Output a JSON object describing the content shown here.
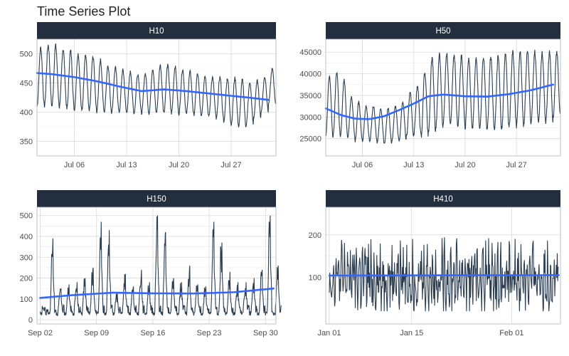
{
  "title": "Time Series Plot",
  "colors": {
    "strip": "#232f3e",
    "strip_text": "#ffffff",
    "line": "#2c3e50",
    "smooth": "#3366ff",
    "grid": "#d9d9d9",
    "border": "#b3b3b3",
    "tick_label": "#4d4d4d"
  },
  "chart_data": [
    {
      "type": "line",
      "panel": "H10",
      "x_unit": "hours (Jul 2015)",
      "x_start": "Jun 30",
      "xlim": [
        "Jun 30",
        "Aug 01"
      ],
      "ylim": [
        325,
        525
      ],
      "xticks": [
        {
          "label": "Jul 06",
          "pos": 6
        },
        {
          "label": "Jul 13",
          "pos": 13
        },
        {
          "label": "Jul 20",
          "pos": 20
        },
        {
          "label": "Jul 27",
          "pos": 27
        }
      ],
      "yticks": [
        350,
        400,
        450,
        500
      ],
      "series": [
        {
          "x": [
            1,
            32
          ],
          "kind": "hourly",
          "daily_mean": [
            460,
            463,
            462,
            458,
            455,
            452,
            450,
            448,
            445,
            440,
            438,
            436,
            434,
            432,
            432,
            436,
            440,
            440,
            438,
            435,
            433,
            430,
            428,
            426,
            424,
            420,
            418,
            415,
            414,
            422,
            430,
            444
          ],
          "daily_amplitude": [
            50,
            52,
            52,
            50,
            50,
            48,
            48,
            46,
            44,
            40,
            38,
            36,
            35,
            33,
            34,
            38,
            40,
            40,
            40,
            38,
            36,
            35,
            34,
            34,
            36,
            38,
            40,
            40,
            36,
            32,
            30,
            30
          ]
        },
        {
          "name": "smooth",
          "x": [
            1,
            3,
            6,
            9,
            12,
            15,
            18,
            21,
            24,
            27,
            30,
            32
          ],
          "y": [
            467,
            465,
            460,
            453,
            444,
            436,
            439,
            436,
            432,
            428,
            424,
            421
          ]
        }
      ]
    },
    {
      "type": "line",
      "panel": "H50",
      "x_unit": "hours (Jul 2015)",
      "x_start": "Jun 30",
      "xlim": [
        "Jun 30",
        "Aug 01"
      ],
      "ylim": [
        21000,
        48000
      ],
      "xticks": [
        {
          "label": "Jul 06",
          "pos": 6
        },
        {
          "label": "Jul 13",
          "pos": 13
        },
        {
          "label": "Jul 20",
          "pos": 20
        },
        {
          "label": "Jul 27",
          "pos": 27
        }
      ],
      "yticks": [
        25000,
        30000,
        35000,
        40000,
        45000
      ],
      "series": [
        {
          "x": [
            1,
            32
          ],
          "kind": "hourly",
          "daily_mean": [
            32500,
            33000,
            32000,
            30000,
            29000,
            28500,
            28500,
            28000,
            28000,
            28500,
            29000,
            30500,
            31500,
            33000,
            35000,
            36000,
            36500,
            36500,
            36000,
            35500,
            35500,
            35500,
            35500,
            35500,
            36000,
            36500,
            36500,
            37000,
            37000,
            37000,
            37000,
            37500
          ],
          "daily_amplitude": [
            7000,
            7500,
            6500,
            4500,
            4500,
            4000,
            4000,
            4000,
            4000,
            4000,
            4500,
            5000,
            5500,
            7500,
            8500,
            8500,
            8000,
            8000,
            8000,
            8000,
            8000,
            8500,
            8500,
            8500,
            8500,
            8500,
            8500,
            8500,
            8000,
            8000,
            8000,
            7500
          ]
        },
        {
          "name": "smooth",
          "x": [
            1,
            3,
            5,
            7,
            9,
            11,
            13,
            15,
            17,
            20,
            23,
            26,
            29,
            32
          ],
          "y": [
            32000,
            30500,
            29600,
            29500,
            30200,
            31600,
            33100,
            34800,
            35200,
            34800,
            34700,
            35300,
            36200,
            37500
          ]
        }
      ]
    },
    {
      "type": "line",
      "panel": "H150",
      "x_unit": "hours (Sep 2015)",
      "x_start": "Sep 01",
      "xlim": [
        "Sep 01",
        "Oct 01"
      ],
      "ylim": [
        -20,
        540
      ],
      "xticks": [
        {
          "label": "Sep 02",
          "pos": 1
        },
        {
          "label": "Sep 09",
          "pos": 8
        },
        {
          "label": "Sep 16",
          "pos": 15
        },
        {
          "label": "Sep 23",
          "pos": 22
        },
        {
          "label": "Sep 30",
          "pos": 29
        }
      ],
      "yticks": [
        0,
        100,
        200,
        300,
        400,
        500
      ],
      "series": [
        {
          "x": [
            1,
            30
          ],
          "kind": "hourly",
          "daily_peak": [
            60,
            390,
            150,
            170,
            180,
            200,
            250,
            470,
            430,
            130,
            220,
            160,
            240,
            180,
            500,
            420,
            200,
            180,
            260,
            170,
            160,
            470,
            370,
            230,
            180,
            180,
            200,
            240,
            500,
            260
          ]
        },
        {
          "name": "smooth",
          "x": [
            1,
            5,
            10,
            15,
            20,
            25,
            30
          ],
          "y": [
            105,
            118,
            130,
            127,
            126,
            132,
            150
          ]
        }
      ]
    },
    {
      "type": "line",
      "panel": "H410",
      "x_unit": "hours (Jan–Feb 2017)",
      "x_start": "Jan 01",
      "xlim": [
        "Jan 01",
        "Feb 08"
      ],
      "ylim": [
        -10,
        265
      ],
      "xticks": [
        {
          "label": "Jan 01",
          "pos": 0
        },
        {
          "label": "Jan 15",
          "pos": 14
        },
        {
          "label": "Feb 01",
          "pos": 31
        }
      ],
      "yticks": [
        100,
        200
      ],
      "series": [
        {
          "x": [
            0,
            39
          ],
          "kind": "hourly",
          "range": [
            20,
            255
          ]
        },
        {
          "name": "smooth",
          "x": [
            0,
            39
          ],
          "y": [
            104,
            105
          ]
        }
      ]
    }
  ]
}
